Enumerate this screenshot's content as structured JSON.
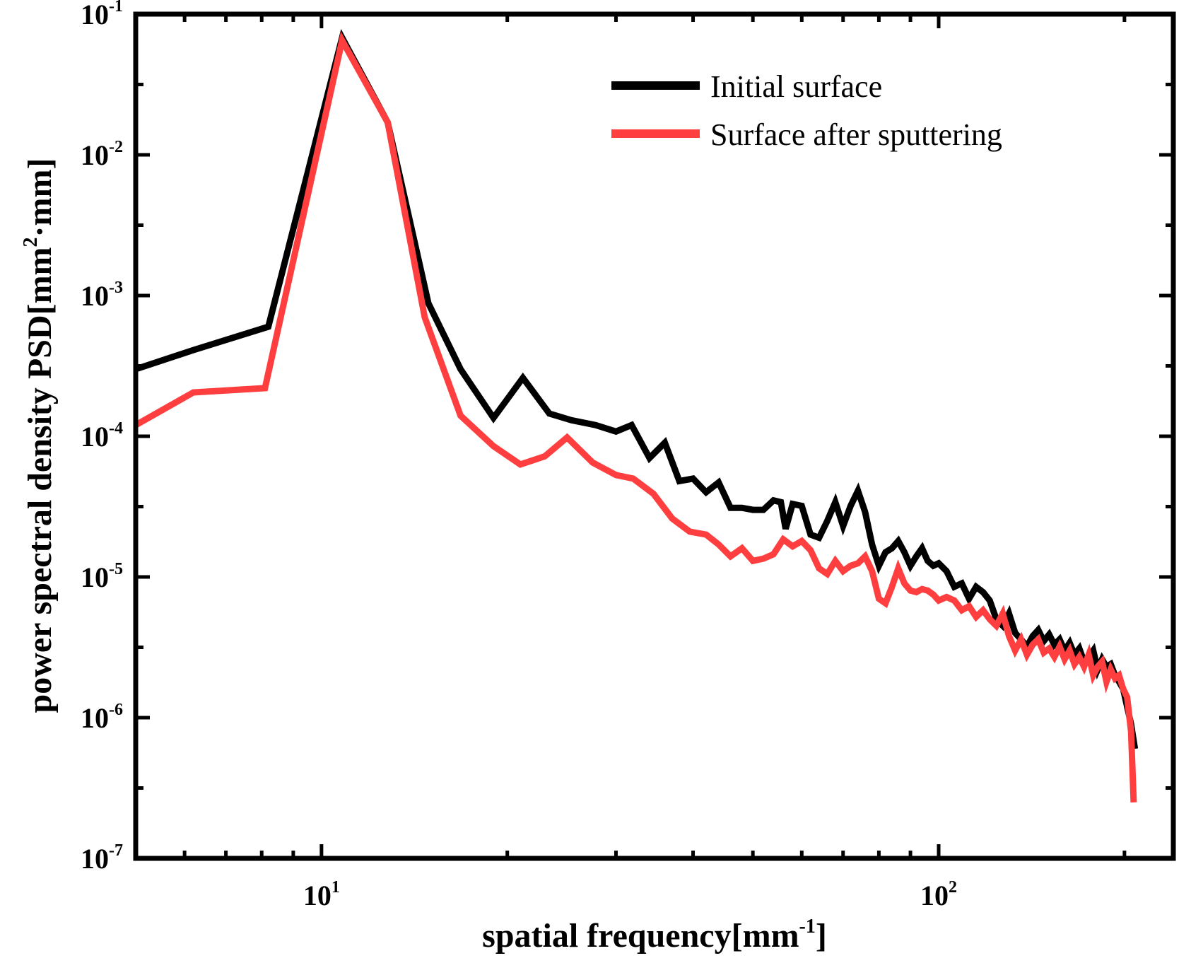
{
  "chart_data": {
    "type": "line",
    "title": "",
    "xlabel": {
      "base": "spatial frequency[mm",
      "sup": "-1",
      "tail": "]"
    },
    "ylabel": {
      "base": "power spectral density PSD[mm",
      "sup": "2",
      "tail": "·mm]"
    },
    "xscale": "log",
    "yscale": "log",
    "xlim": [
      5,
      240
    ],
    "ylim": [
      1e-07,
      0.1
    ],
    "xticks": [
      {
        "base": "10",
        "exp": "1"
      },
      {
        "base": "10",
        "exp": "2"
      }
    ],
    "yticks": [
      {
        "base": "10",
        "exp": "-7"
      },
      {
        "base": "10",
        "exp": "-6"
      },
      {
        "base": "10",
        "exp": "-5"
      },
      {
        "base": "10",
        "exp": "-4"
      },
      {
        "base": "10",
        "exp": "-3"
      },
      {
        "base": "10",
        "exp": "-2"
      },
      {
        "base": "10",
        "exp": "-1"
      }
    ],
    "legend_position": "top-right",
    "series": [
      {
        "name": "Initial surface",
        "color": "#000000",
        "x": [
          5.0,
          6.2,
          8.2,
          10.8,
          12.8,
          14.9,
          16.8,
          19.0,
          21.2,
          23.4,
          25.4,
          27.8,
          30.0,
          31.8,
          34.0,
          36.0,
          38.0,
          40.0,
          42.0,
          44.0,
          46.0,
          48.0,
          50.0,
          52.0,
          54.0,
          55.5,
          56.5,
          58.0,
          60.0,
          62.0,
          64.0,
          66.0,
          68.0,
          70.0,
          72.0,
          74.0,
          76.0,
          78.0,
          80.0,
          82.0,
          84.0,
          86.0,
          88.0,
          90.0,
          92.0,
          94.0,
          96.0,
          98.0,
          100.0,
          103.0,
          106.0,
          109.0,
          112.0,
          115.0,
          118.0,
          121.0,
          124.0,
          127.0,
          130.0,
          133.0,
          136.0,
          139.0,
          142.0,
          145.0,
          148.0,
          151.0,
          154.0,
          157.0,
          160.0,
          163.0,
          166.0,
          169.0,
          172.0,
          175.0,
          178.0,
          181.0,
          184.0,
          187.0,
          190.0,
          193.0,
          196.0,
          199.0,
          202.0,
          205.0,
          208.0
        ],
        "y": [
          0.0003,
          0.00041,
          0.0006,
          0.068,
          0.017,
          0.00088,
          0.0003,
          0.000135,
          0.00026,
          0.000145,
          0.00013,
          0.00012,
          0.000108,
          0.00012,
          7e-05,
          9e-05,
          4.8e-05,
          5e-05,
          4e-05,
          4.7e-05,
          3.1e-05,
          3.1e-05,
          3e-05,
          3e-05,
          3.5e-05,
          3.4e-05,
          2.2e-05,
          3.3e-05,
          3.2e-05,
          2e-05,
          1.9e-05,
          2.5e-05,
          3.4e-05,
          2.3e-05,
          3.2e-05,
          4.1e-05,
          2.9e-05,
          1.7e-05,
          1.2e-05,
          1.5e-05,
          1.6e-05,
          1.8e-05,
          1.5e-05,
          1.2e-05,
          1.4e-05,
          1.6e-05,
          1.3e-05,
          1.2e-05,
          1.25e-05,
          1.1e-05,
          8.5e-06,
          9e-06,
          7e-06,
          8.5e-06,
          7.8e-06,
          6.8e-06,
          5e-06,
          4.5e-06,
          5.5e-06,
          4e-06,
          3.6e-06,
          3.2e-06,
          3.8e-06,
          4.2e-06,
          3.5e-06,
          3.9e-06,
          3.3e-06,
          3.6e-06,
          3e-06,
          3.4e-06,
          2.8e-06,
          3.1e-06,
          2.5e-06,
          2.7e-06,
          3e-06,
          2.2e-06,
          2.6e-06,
          2.3e-06,
          2.4e-06,
          2e-06,
          1.8e-06,
          1.6e-06,
          1.2e-06,
          9e-07,
          6e-07
        ]
      },
      {
        "name": "Surface after sputtering",
        "color": "#ff3f3f",
        "x": [
          5.0,
          6.2,
          8.1,
          10.8,
          12.8,
          14.7,
          16.8,
          19.0,
          21.0,
          23.0,
          25.0,
          27.5,
          30.0,
          32.0,
          34.5,
          37.0,
          39.5,
          42.0,
          44.0,
          46.0,
          48.0,
          50.0,
          52.0,
          54.0,
          56.0,
          58.0,
          60.0,
          62.0,
          64.0,
          66.0,
          68.0,
          70.0,
          72.0,
          74.0,
          76.0,
          78.0,
          80.0,
          82.0,
          84.0,
          86.0,
          88.0,
          90.0,
          92.0,
          94.0,
          96.0,
          98.0,
          100.0,
          103.0,
          106.0,
          109.0,
          112.0,
          115.0,
          118.0,
          121.0,
          124.0,
          127.0,
          130.0,
          133.0,
          136.0,
          139.0,
          142.0,
          145.0,
          148.0,
          151.0,
          154.0,
          157.0,
          160.0,
          163.0,
          166.0,
          169.0,
          172.0,
          175.0,
          178.0,
          181.0,
          184.0,
          187.0,
          190.0,
          193.0,
          196.0,
          199.0,
          202.0,
          205.0,
          207.0
        ],
        "y": [
          0.00012,
          0.000205,
          0.00022,
          0.065,
          0.017,
          0.0007,
          0.00014,
          8.5e-05,
          6.3e-05,
          7.2e-05,
          9.8e-05,
          6.5e-05,
          5.3e-05,
          5e-05,
          3.9e-05,
          2.6e-05,
          2.1e-05,
          2e-05,
          1.7e-05,
          1.4e-05,
          1.6e-05,
          1.3e-05,
          1.35e-05,
          1.45e-05,
          1.85e-05,
          1.65e-05,
          1.8e-05,
          1.55e-05,
          1.15e-05,
          1.05e-05,
          1.3e-05,
          1.1e-05,
          1.2e-05,
          1.25e-05,
          1.4e-05,
          1.1e-05,
          7e-06,
          6.5e-06,
          8.5e-06,
          1.15e-05,
          9e-06,
          8e-06,
          7.8e-06,
          8.2e-06,
          8e-06,
          7.5e-06,
          6.8e-06,
          7.2e-06,
          6.8e-06,
          5.8e-06,
          6.2e-06,
          5.2e-06,
          5.8e-06,
          5e-06,
          4.5e-06,
          5.5e-06,
          3.8e-06,
          3e-06,
          3.6e-06,
          2.8e-06,
          3.3e-06,
          3.6e-06,
          2.9e-06,
          3.1e-06,
          2.7e-06,
          3.2e-06,
          2.6e-06,
          3e-06,
          2.4e-06,
          2.7e-06,
          2.3e-06,
          2.8e-06,
          2e-06,
          2.3e-06,
          2.5e-06,
          1.8e-06,
          2.2e-06,
          1.9e-06,
          2e-06,
          1.6e-06,
          1.4e-06,
          8e-07,
          2.5e-07
        ]
      }
    ]
  }
}
